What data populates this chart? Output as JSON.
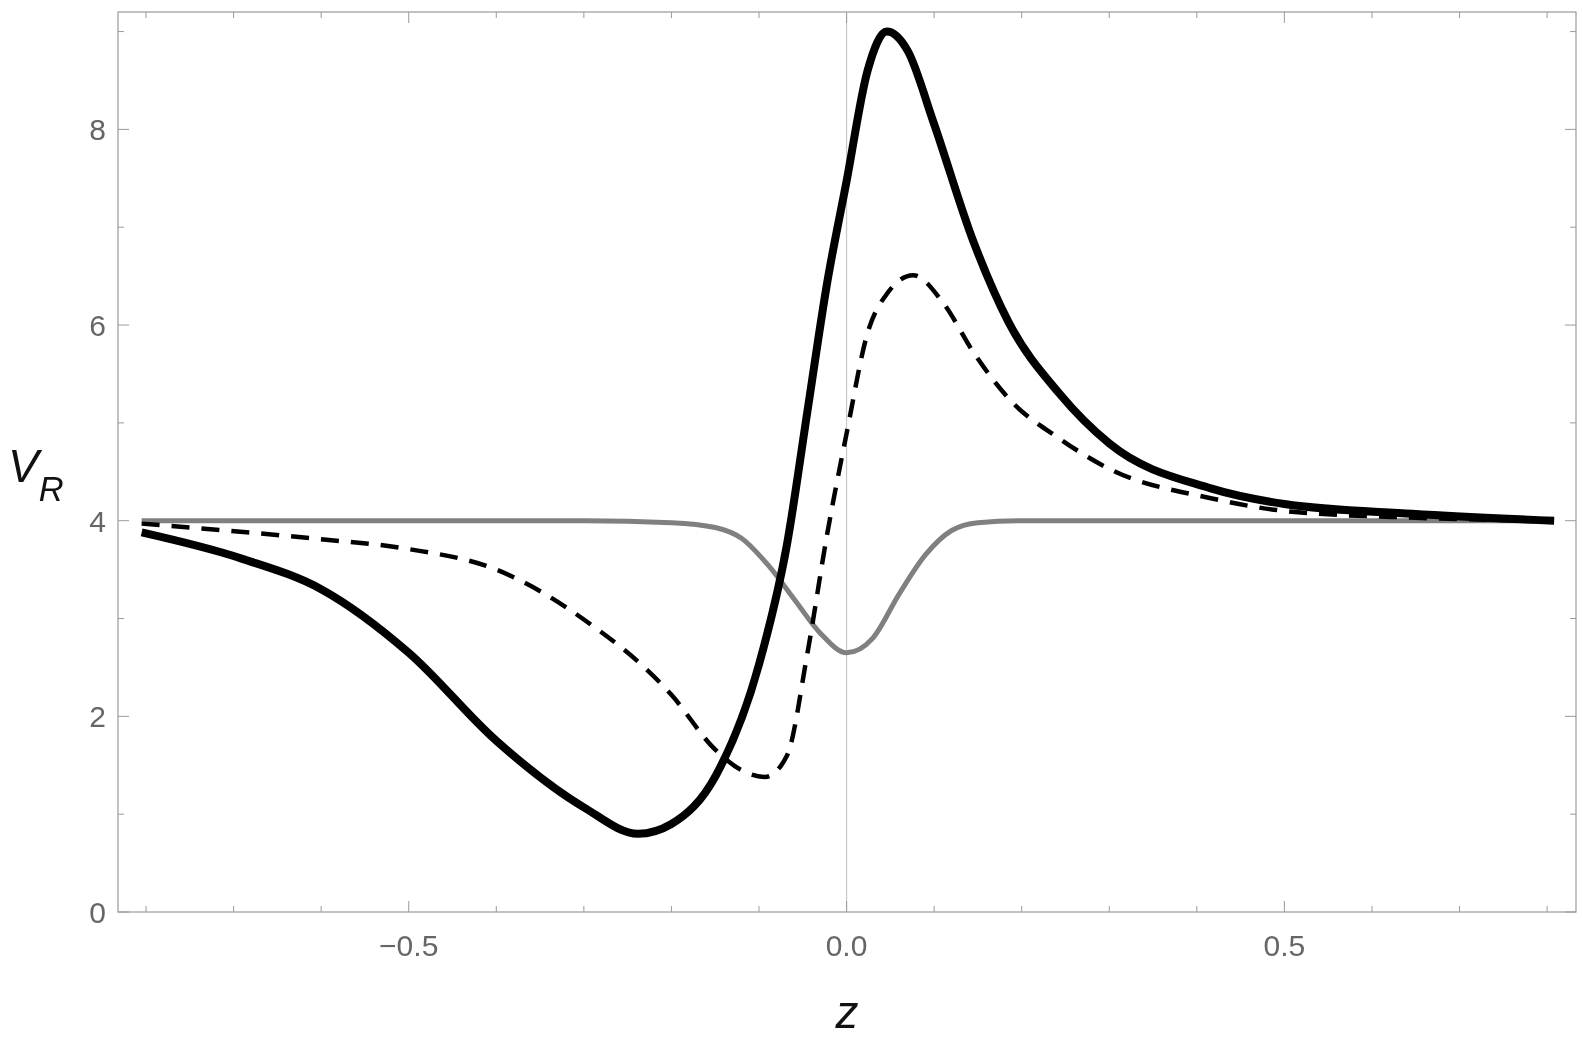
{
  "chart_data": {
    "type": "line",
    "xlabel": "z",
    "ylabel": "V$_{R}$",
    "xlim": [
      -0.832,
      0.833
    ],
    "ylim": [
      0,
      9.2
    ],
    "xticks": [
      {
        "value": -0.8,
        "label": null
      },
      {
        "value": -0.7,
        "label": null
      },
      {
        "value": -0.6,
        "label": null
      },
      {
        "value": -0.5,
        "label": "−0.5"
      },
      {
        "value": -0.4,
        "label": null
      },
      {
        "value": -0.3,
        "label": null
      },
      {
        "value": -0.2,
        "label": null
      },
      {
        "value": -0.1,
        "label": null
      },
      {
        "value": 0,
        "label": "0.0"
      },
      {
        "value": 0.1,
        "label": null
      },
      {
        "value": 0.2,
        "label": null
      },
      {
        "value": 0.3,
        "label": null
      },
      {
        "value": 0.4,
        "label": null
      },
      {
        "value": 0.5,
        "label": "0.5"
      },
      {
        "value": 0.6,
        "label": null
      },
      {
        "value": 0.7,
        "label": null
      },
      {
        "value": 0.8,
        "label": null
      }
    ],
    "yticks": [
      0,
      {
        "value": 1,
        "label": null
      },
      2,
      {
        "value": 3,
        "label": null
      },
      4,
      {
        "value": 5,
        "label": null
      },
      6,
      {
        "value": 7,
        "label": null
      },
      8,
      {
        "value": 9,
        "label": null
      }
    ],
    "grid": false,
    "ref_lines": [
      {
        "axis": "x",
        "value": 0,
        "color": "#c8c8c8"
      }
    ],
    "series": [
      {
        "color": "#808080",
        "line_style": "solid",
        "x": [
          -0.805,
          -0.3,
          -0.2,
          -0.15,
          -0.12,
          -0.09,
          -0.06,
          -0.03,
          0,
          0.03,
          0.06,
          0.09,
          0.12,
          0.15,
          0.2,
          0.808
        ],
        "values": [
          4,
          4,
          3.98,
          3.93,
          3.82,
          3.55,
          3.2,
          2.85,
          2.65,
          2.8,
          3.25,
          3.65,
          3.9,
          3.98,
          4,
          4
        ]
      },
      {
        "color": "#000000",
        "line_style": "solid",
        "x": [
          -0.805,
          -0.69,
          -0.6,
          -0.5,
          -0.4,
          -0.3,
          -0.238,
          -0.2,
          -0.149,
          -0.1,
          -0.068,
          -0.045,
          -0.022,
          0,
          0.024,
          0.046,
          0.07,
          0.099,
          0.145,
          0.185,
          0.243,
          0.3,
          0.416,
          0.5,
          0.646,
          0.808
        ],
        "values": [
          3.88,
          3.61,
          3.3,
          2.65,
          1.75,
          1.07,
          0.8,
          0.9,
          1.4,
          2.53,
          3.76,
          5.1,
          6.44,
          7.47,
          8.6,
          9.0,
          8.8,
          8.08,
          6.85,
          6.03,
          5.3,
          4.79,
          4.33,
          4.17,
          4.07,
          4.0
        ]
      },
      {
        "color": "#000000",
        "line_style": "dashed",
        "x": [
          -0.805,
          -0.6,
          -0.5,
          -0.4,
          -0.3,
          -0.2,
          -0.15,
          -0.12,
          -0.093,
          -0.068,
          -0.045,
          -0.022,
          0,
          0.024,
          0.047,
          0.076,
          0.11,
          0.145,
          0.185,
          0.243,
          0.3,
          0.416,
          0.5,
          0.65,
          0.808
        ],
        "values": [
          3.97,
          3.81,
          3.71,
          3.5,
          2.99,
          2.22,
          1.66,
          1.45,
          1.38,
          1.6,
          2.63,
          3.87,
          4.89,
          5.92,
          6.33,
          6.51,
          6.23,
          5.72,
          5.25,
          4.84,
          4.53,
          4.23,
          4.1,
          4.03,
          4.0
        ]
      }
    ]
  }
}
